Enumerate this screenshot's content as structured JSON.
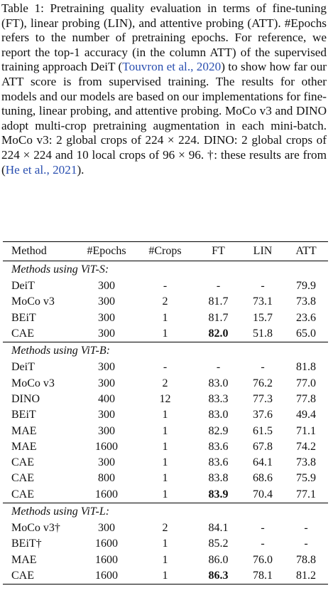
{
  "caption": [
    {
      "text": "Table 1: Pretraining quality evaluation in terms of fine-tuning (FT), linear probing (LIN), and attentive probing (ATT). #Epochs refers to the number of pretraining epochs. For reference, we report the top-1 accuracy (in the column ATT) of the supervised training approach DeiT ("
    },
    {
      "text": "Touvron et al., 2020",
      "link": true
    },
    {
      "text": ") to show how far our ATT score is from supervised training. The results for other models and our models are based on our implementations for fine-tuning, linear probing, and attentive probing. MoCo v3 and DINO adopt multi-crop pretraining augmentation in each mini-batch. MoCo v3: 2 global crops of 224 × 224. DINO: 2 global crops of 224 × 224 and 10 local crops of 96 × 96. †: these results are from ("
    },
    {
      "text": "He et al., 2021",
      "link": true
    },
    {
      "text": ")."
    }
  ],
  "table": {
    "header": [
      "Method",
      "#Epochs",
      "#Crops",
      "FT",
      "LIN",
      "ATT"
    ],
    "groups": [
      {
        "title": "Methods using ViT-S:",
        "rows": [
          {
            "cells": [
              "DeiT",
              "300",
              "-",
              "-",
              "-",
              "79.9"
            ]
          },
          {
            "cells": [
              "MoCo v3",
              "300",
              "2",
              "81.7",
              "73.1",
              "73.8"
            ]
          },
          {
            "cells": [
              "BEiT",
              "300",
              "1",
              "81.7",
              "15.7",
              "23.6"
            ]
          },
          {
            "cells": [
              "CAE",
              "300",
              "1",
              "82.0",
              "51.8",
              "65.0"
            ],
            "bold": [
              3
            ]
          }
        ]
      },
      {
        "title": "Methods using ViT-B:",
        "rows": [
          {
            "cells": [
              "DeiT",
              "300",
              "-",
              "-",
              "-",
              "81.8"
            ]
          },
          {
            "cells": [
              "MoCo v3",
              "300",
              "2",
              "83.0",
              "76.2",
              "77.0"
            ]
          },
          {
            "cells": [
              "DINO",
              "400",
              "12",
              "83.3",
              "77.3",
              "77.8"
            ]
          },
          {
            "cells": [
              "BEiT",
              "300",
              "1",
              "83.0",
              "37.6",
              "49.4"
            ]
          },
          {
            "cells": [
              "MAE",
              "300",
              "1",
              "82.9",
              "61.5",
              "71.1"
            ]
          },
          {
            "cells": [
              "MAE",
              "1600",
              "1",
              "83.6",
              "67.8",
              "74.2"
            ]
          },
          {
            "cells": [
              "CAE",
              "300",
              "1",
              "83.6",
              "64.1",
              "73.8"
            ]
          },
          {
            "cells": [
              "CAE",
              "800",
              "1",
              "83.8",
              "68.6",
              "75.9"
            ]
          },
          {
            "cells": [
              "CAE",
              "1600",
              "1",
              "83.9",
              "70.4",
              "77.1"
            ],
            "bold": [
              3
            ]
          }
        ]
      },
      {
        "title": "Methods using ViT-L:",
        "rows": [
          {
            "cells": [
              "MoCo v3†",
              "300",
              "2",
              "84.1",
              "-",
              "-"
            ]
          },
          {
            "cells": [
              "BEiT†",
              "1600",
              "1",
              "85.2",
              "-",
              "-"
            ]
          },
          {
            "cells": [
              "MAE",
              "1600",
              "1",
              "86.0",
              "76.0",
              "78.8"
            ]
          },
          {
            "cells": [
              "CAE",
              "1600",
              "1",
              "86.3",
              "78.1",
              "81.2"
            ],
            "bold": [
              3
            ]
          }
        ]
      }
    ]
  }
}
